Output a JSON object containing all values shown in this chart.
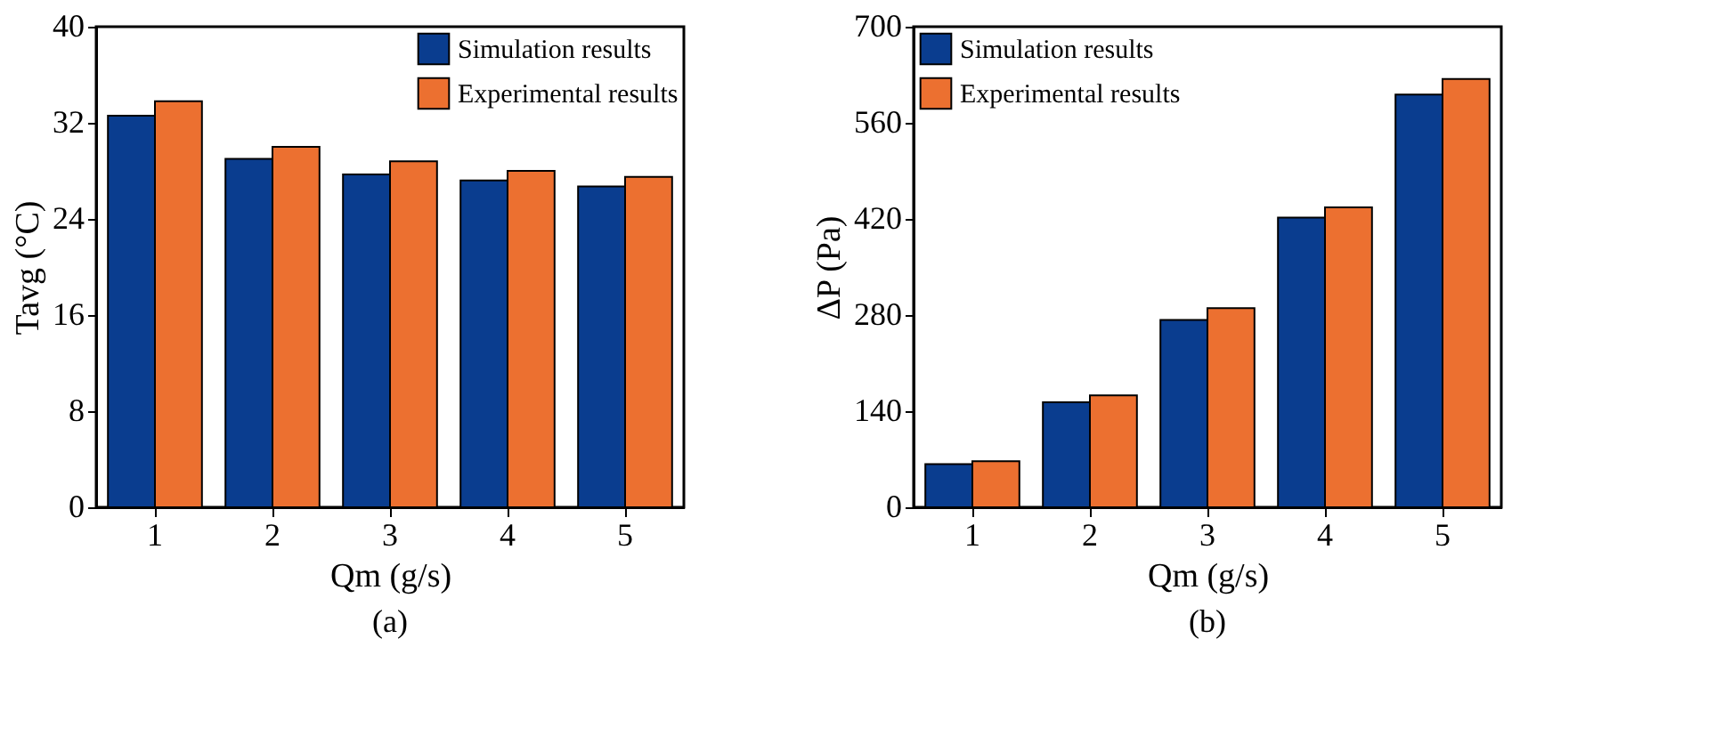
{
  "chart_data": [
    {
      "type": "bar",
      "title": "(a)",
      "xlabel": "Qm (g/s)",
      "ylabel": "Tavg (°C)",
      "categories": [
        "1",
        "2",
        "3",
        "4",
        "5"
      ],
      "series": [
        {
          "name": "Simulation results",
          "color": "#0a3d8f",
          "values": [
            32.6,
            29.0,
            27.7,
            27.2,
            26.7
          ]
        },
        {
          "name": "Experimental results",
          "color": "#ec7030",
          "values": [
            33.8,
            30.0,
            28.8,
            28.0,
            27.5
          ]
        }
      ],
      "ylim": [
        0,
        40
      ],
      "yticks": [
        0,
        8,
        16,
        24,
        32,
        40
      ],
      "grid": false,
      "legend": "top right"
    },
    {
      "type": "bar",
      "title": "(b)",
      "xlabel": "Qm (g/s)",
      "ylabel": "ΔP (Pa)",
      "categories": [
        "1",
        "2",
        "3",
        "4",
        "5"
      ],
      "series": [
        {
          "name": "Simulation results",
          "color": "#0a3d8f",
          "values": [
            63,
            153,
            273,
            422,
            601
          ]
        },
        {
          "name": "Experimental results",
          "color": "#ec7030",
          "values": [
            67,
            163,
            290,
            437,
            624
          ]
        }
      ],
      "ylim": [
        0,
        700
      ],
      "yticks": [
        0,
        140,
        280,
        420,
        560,
        700
      ],
      "grid": false,
      "legend": "top left"
    }
  ]
}
